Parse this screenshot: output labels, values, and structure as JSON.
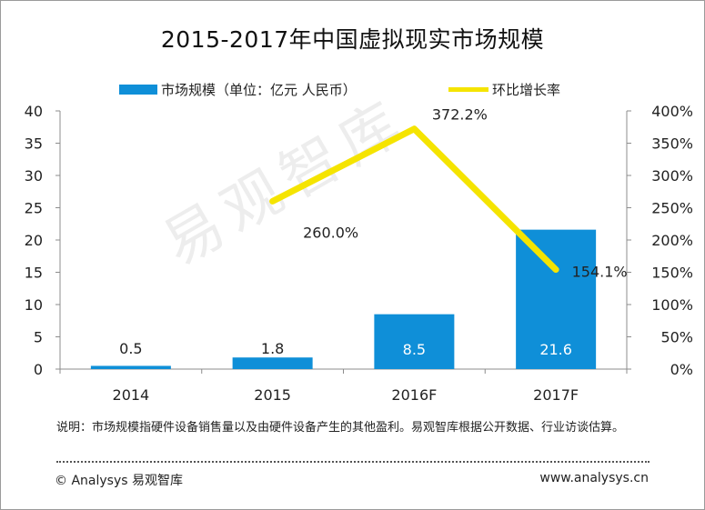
{
  "chart_data": {
    "type": "bar",
    "title": "2015-2017年中国虚拟现实市场规模",
    "categories": [
      "2014",
      "2015",
      "2016F",
      "2017F"
    ],
    "series": [
      {
        "name": "市场规模（单位：亿元 人民币）",
        "type": "bar",
        "axis": "left",
        "values": [
          0.5,
          1.8,
          8.5,
          21.6
        ],
        "labels": [
          "0.5",
          "1.8",
          "8.5",
          "21.6"
        ],
        "color": "#0f8fd8"
      },
      {
        "name": "环比增长率",
        "type": "line",
        "axis": "right",
        "values": [
          null,
          260.0,
          372.2,
          154.1
        ],
        "labels": [
          "",
          "260.0%",
          "372.2%",
          "154.1%"
        ],
        "color": "#f5e400"
      }
    ],
    "y_left": {
      "min": 0,
      "max": 40,
      "ticks": [
        "0",
        "5",
        "10",
        "15",
        "20",
        "25",
        "30",
        "35",
        "40"
      ]
    },
    "y_right": {
      "min": 0,
      "max": 400,
      "ticks": [
        "0%",
        "50%",
        "100%",
        "150%",
        "200%",
        "250%",
        "300%",
        "350%",
        "400%"
      ]
    },
    "legend": "top-center",
    "grid": false
  },
  "watermark": "易观智库",
  "note": "说明：市场规模指硬件设备销售量以及由硬件设备产生的其他盈利。易观智库根据公开数据、行业访谈估算。",
  "footer": {
    "left": "© Analysys 易观智库",
    "right": "www.analysys.cn"
  }
}
